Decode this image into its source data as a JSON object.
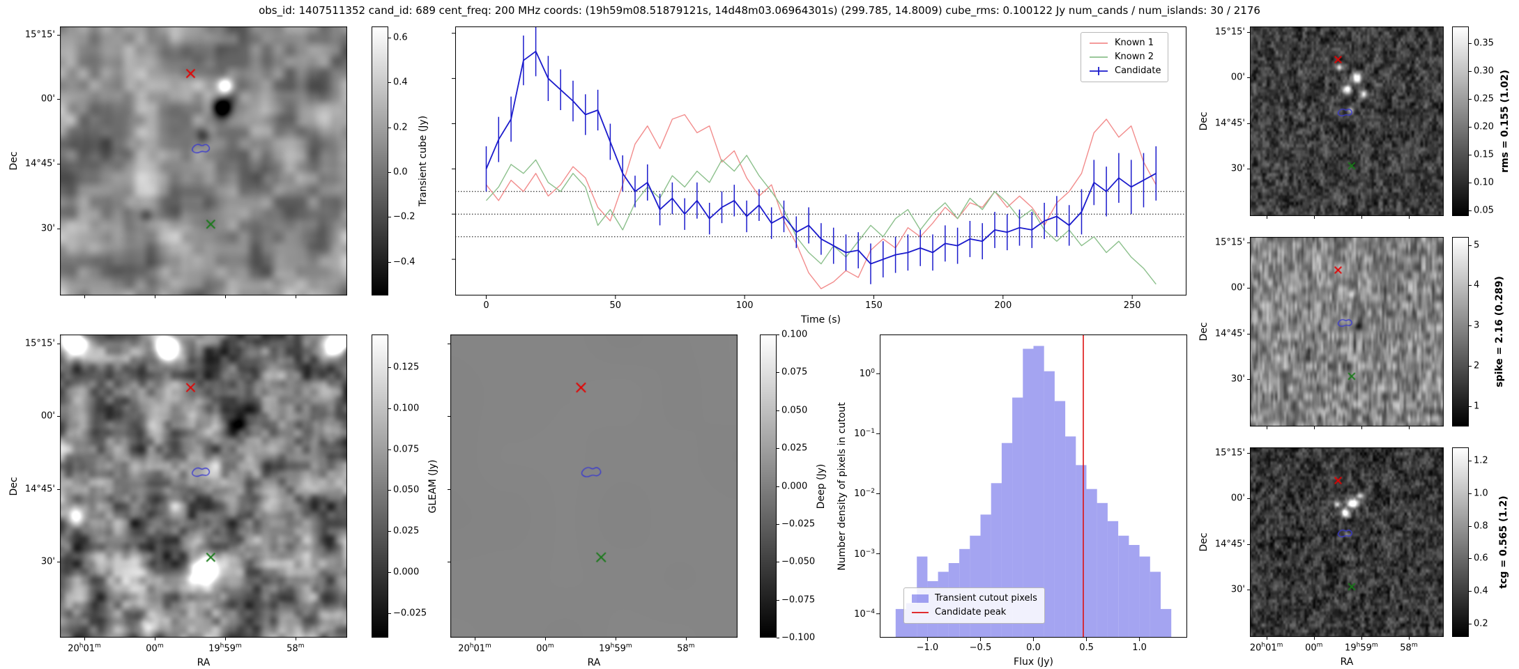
{
  "title": "obs_id: 1407511352 cand_id: 689 cent_freq: 200 MHz coords: (19h59m08.51879121s, 14d48m03.06964301s) (299.785, 14.8009) cube_rms: 0.100122 Jy num_cands / num_islands: 30 / 2176",
  "axes": {
    "dec_label": "Dec",
    "ra_label": "RA",
    "dec_ticks": [
      {
        "label": "15°15'",
        "f": 0.03
      },
      {
        "label": "00'",
        "f": 0.27
      },
      {
        "label": "14°45'",
        "f": 0.51
      },
      {
        "label": "30'",
        "f": 0.75
      }
    ],
    "ra_ticks": [
      {
        "label": "20^h01^m",
        "f": 0.085
      },
      {
        "label": "00^m",
        "f": 0.33
      },
      {
        "label": "19^h59^m",
        "f": 0.575
      },
      {
        "label": "58^m",
        "f": 0.82
      }
    ]
  },
  "markers": {
    "red_x": {
      "color": "#e60000",
      "fx": 0.455,
      "fy": 0.175
    },
    "green_x": {
      "color": "#1a7a1a",
      "fx": 0.525,
      "fy": 0.735
    },
    "blue_contour": {
      "color": "#3a3ad0",
      "fx": 0.49,
      "fy": 0.455
    }
  },
  "panels": [
    {
      "id": "transient",
      "colorbar": {
        "label": "Transient cube (Jy)",
        "bold": false,
        "vmin": -0.55,
        "vmax": 0.65,
        "ticks": [
          {
            "v": 0.6,
            "label": "0.6"
          },
          {
            "v": 0.4,
            "label": "0.4"
          },
          {
            "v": 0.2,
            "label": "0.2"
          },
          {
            "v": 0.0,
            "label": "0.0"
          },
          {
            "v": -0.2,
            "label": "−0.2"
          },
          {
            "v": -0.4,
            "label": "−0.4"
          }
        ]
      }
    },
    {
      "id": "gleam",
      "colorbar": {
        "label": "GLEAM (Jy)",
        "bold": false,
        "vmin": -0.04,
        "vmax": 0.145,
        "ticks": [
          {
            "v": 0.125,
            "label": "0.125"
          },
          {
            "v": 0.1,
            "label": "0.100"
          },
          {
            "v": 0.075,
            "label": "0.075"
          },
          {
            "v": 0.05,
            "label": "0.050"
          },
          {
            "v": 0.025,
            "label": "0.025"
          },
          {
            "v": 0,
            "label": "0.000"
          },
          {
            "v": -0.025,
            "label": "−0.025"
          }
        ]
      }
    },
    {
      "id": "deep",
      "colorbar": {
        "label": "Deep (Jy)",
        "bold": false,
        "vmin": -0.1,
        "vmax": 0.1,
        "ticks": [
          {
            "v": 0.1,
            "label": "0.100"
          },
          {
            "v": 0.075,
            "label": "0.075"
          },
          {
            "v": 0.05,
            "label": "0.050"
          },
          {
            "v": 0.025,
            "label": "0.025"
          },
          {
            "v": 0,
            "label": "0.000"
          },
          {
            "v": -0.025,
            "label": "−0.025"
          },
          {
            "v": -0.05,
            "label": "−0.050"
          },
          {
            "v": -0.075,
            "label": "−0.075"
          },
          {
            "v": -0.1,
            "label": "−0.100"
          }
        ]
      }
    },
    {
      "id": "rms",
      "colorbar": {
        "label": "rms = 0.155 (1.02)",
        "bold": true,
        "vmin": 0.04,
        "vmax": 0.38,
        "ticks": [
          {
            "v": 0.35,
            "label": "0.35"
          },
          {
            "v": 0.3,
            "label": "0.30"
          },
          {
            "v": 0.25,
            "label": "0.25"
          },
          {
            "v": 0.2,
            "label": "0.20"
          },
          {
            "v": 0.15,
            "label": "0.15"
          },
          {
            "v": 0.1,
            "label": "0.10"
          },
          {
            "v": 0.05,
            "label": "0.05"
          }
        ]
      }
    },
    {
      "id": "spike",
      "colorbar": {
        "label": "spike = 2.16 (0.289)",
        "bold": true,
        "vmin": 0.5,
        "vmax": 5.2,
        "ticks": [
          {
            "v": 5,
            "label": "5"
          },
          {
            "v": 4,
            "label": "4"
          },
          {
            "v": 3,
            "label": "3"
          },
          {
            "v": 2,
            "label": "2"
          },
          {
            "v": 1,
            "label": "1"
          }
        ]
      }
    },
    {
      "id": "tcg",
      "colorbar": {
        "label": "tcg = 0.565 (1.2)",
        "bold": true,
        "vmin": 0.12,
        "vmax": 1.28,
        "ticks": [
          {
            "v": 1.2,
            "label": "1.2"
          },
          {
            "v": 1.0,
            "label": "1.0"
          },
          {
            "v": 0.8,
            "label": "0.8"
          },
          {
            "v": 0.6,
            "label": "0.6"
          },
          {
            "v": 0.4,
            "label": "0.4"
          },
          {
            "v": 0.2,
            "label": "0.2"
          }
        ]
      }
    }
  ],
  "chart_data": [
    {
      "id": "lightcurve",
      "type": "line",
      "xlabel": "Time (s)",
      "xlim": [
        -12,
        271
      ],
      "ylim": [
        -0.36,
        0.83
      ],
      "xticks": [
        0,
        50,
        100,
        150,
        200,
        250
      ],
      "yticks_unlabeled": [
        -0.2,
        0,
        0.2,
        0.4,
        0.6,
        0.8
      ],
      "hlines": [
        0.1,
        0,
        -0.1
      ],
      "legend_position": "top-right",
      "x": [
        0,
        4.8,
        9.6,
        14.4,
        19.2,
        24,
        28.8,
        33.6,
        38.4,
        43.2,
        48,
        52.8,
        57.6,
        62.4,
        67.2,
        72,
        76.8,
        81.6,
        86.4,
        91.2,
        96,
        100.8,
        105.6,
        110.4,
        115.2,
        120,
        124.8,
        129.6,
        134.4,
        139.2,
        144,
        148.8,
        153.6,
        158.4,
        163.2,
        168,
        172.8,
        177.6,
        182.4,
        187.2,
        192,
        196.8,
        201.6,
        206.4,
        211.2,
        216,
        220.8,
        225.6,
        230.4,
        235.2,
        240,
        244.8,
        249.6,
        254.4,
        259.2
      ],
      "series": [
        {
          "name": "Known 1",
          "color": "#f28c8c",
          "values": [
            0.13,
            0.06,
            0.15,
            0.1,
            0.18,
            0.08,
            0.13,
            0.21,
            0.16,
            0.03,
            -0.03,
            0.13,
            0.31,
            0.39,
            0.29,
            0.42,
            0.44,
            0.36,
            0.39,
            0.23,
            0.28,
            0.16,
            0.08,
            0.13,
            -0.03,
            -0.13,
            -0.26,
            -0.33,
            -0.3,
            -0.25,
            -0.28,
            -0.16,
            -0.11,
            -0.15,
            -0.06,
            -0.1,
            -0.04,
            0.03,
            -0.02,
            0.05,
            0.03,
            0.1,
            0.03,
            0.08,
            0.03,
            -0.05,
            0.05,
            0.1,
            0.18,
            0.36,
            0.42,
            0.34,
            0.39,
            0.23,
            0.13
          ]
        },
        {
          "name": "Known 2",
          "color": "#8cc08c",
          "values": [
            0.06,
            0.12,
            0.22,
            0.18,
            0.24,
            0.14,
            0.1,
            0.18,
            0.12,
            -0.05,
            0.02,
            -0.07,
            0.05,
            0.12,
            0.07,
            0.17,
            0.12,
            0.19,
            0.14,
            0.24,
            0.19,
            0.26,
            0.17,
            0.1,
            0.02,
            -0.1,
            -0.17,
            -0.22,
            -0.14,
            -0.19,
            -0.12,
            -0.05,
            -0.1,
            -0.02,
            0.02,
            -0.07,
            0.0,
            0.05,
            -0.02,
            0.07,
            0.02,
            0.1,
            0.05,
            -0.02,
            0.02,
            -0.07,
            -0.12,
            -0.07,
            -0.14,
            -0.1,
            -0.17,
            -0.12,
            -0.19,
            -0.24,
            -0.31
          ]
        },
        {
          "name": "Candidate",
          "color": "#1a1acc",
          "values": [
            0.2,
            0.33,
            0.42,
            0.68,
            0.72,
            0.6,
            0.55,
            0.5,
            0.44,
            0.46,
            0.32,
            0.18,
            0.1,
            0.14,
            0.02,
            0.07,
            0.0,
            0.06,
            -0.02,
            0.03,
            0.06,
            -0.01,
            0.04,
            -0.04,
            -0.01,
            -0.08,
            -0.05,
            -0.11,
            -0.14,
            -0.17,
            -0.16,
            -0.22,
            -0.2,
            -0.18,
            -0.17,
            -0.15,
            -0.17,
            -0.13,
            -0.14,
            -0.11,
            -0.12,
            -0.07,
            -0.08,
            -0.06,
            -0.07,
            -0.03,
            -0.01,
            -0.05,
            0.01,
            0.14,
            0.1,
            0.16,
            0.12,
            0.15,
            0.18
          ],
          "errors": [
            0.1,
            0.1,
            0.1,
            0.11,
            0.11,
            0.1,
            0.09,
            0.09,
            0.09,
            0.09,
            0.08,
            0.08,
            0.07,
            0.08,
            0.07,
            0.07,
            0.07,
            0.08,
            0.07,
            0.07,
            0.07,
            0.07,
            0.07,
            0.07,
            0.07,
            0.07,
            0.08,
            0.07,
            0.08,
            0.08,
            0.08,
            0.09,
            0.08,
            0.08,
            0.08,
            0.08,
            0.08,
            0.08,
            0.08,
            0.08,
            0.08,
            0.08,
            0.08,
            0.08,
            0.08,
            0.08,
            0.09,
            0.09,
            0.1,
            0.1,
            0.11,
            0.11,
            0.12,
            0.12,
            0.12
          ]
        }
      ]
    },
    {
      "id": "histogram",
      "type": "bar",
      "xlabel": "Flux (Jy)",
      "ylabel": "Number density of pixels in cutout",
      "yscale": "log",
      "xlim": [
        -1.45,
        1.45
      ],
      "ylim": [
        4e-05,
        4.5
      ],
      "bar_color": "#5a5ae6",
      "bar_opacity": 0.55,
      "bin_width": 0.1,
      "bin_centers": [
        -1.25,
        -1.15,
        -1.05,
        -0.95,
        -0.85,
        -0.75,
        -0.65,
        -0.55,
        -0.45,
        -0.35,
        -0.25,
        -0.15,
        -0.05,
        0.05,
        0.15,
        0.25,
        0.35,
        0.45,
        0.55,
        0.65,
        0.75,
        0.85,
        0.95,
        1.05,
        1.15,
        1.25
      ],
      "densities": [
        0.00012,
        0.00015,
        0.0009,
        0.00035,
        0.0005,
        0.0007,
        0.0012,
        0.002,
        0.0045,
        0.015,
        0.07,
        0.4,
        2.6,
        2.9,
        1.1,
        0.35,
        0.09,
        0.03,
        0.012,
        0.007,
        0.0035,
        0.002,
        0.0014,
        0.0009,
        0.0005,
        0.00012
      ],
      "vline": {
        "x": 0.47,
        "color": "#dd1111",
        "label": "Candidate peak"
      },
      "bars_label": "Transient cutout pixels",
      "xticks": [
        {
          "v": -1,
          "label": "−1.0"
        },
        {
          "v": -0.5,
          "label": "−0.5"
        },
        {
          "v": 0,
          "label": "0.0"
        },
        {
          "v": 0.5,
          "label": "0.5"
        },
        {
          "v": 1,
          "label": "1.0"
        }
      ],
      "yticks": [
        {
          "v": 1,
          "exp": "0"
        },
        {
          "v": 0.1,
          "exp": "−1"
        },
        {
          "v": 0.01,
          "exp": "−2"
        },
        {
          "v": 0.001,
          "exp": "−3"
        },
        {
          "v": 0.0001,
          "exp": "−4"
        }
      ]
    }
  ]
}
